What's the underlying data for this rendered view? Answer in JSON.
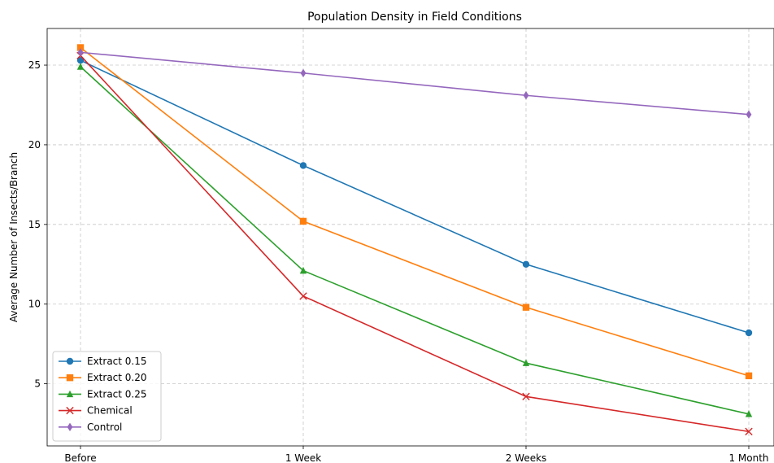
{
  "chart_data": {
    "type": "line",
    "title": "Population Density in Field Conditions",
    "xlabel": "",
    "ylabel": "Average Number of Insects/Branch",
    "categories": [
      "Before",
      "1 Week",
      "2 Weeks",
      "1 Month"
    ],
    "ylim": [
      1.1,
      27.3
    ],
    "yticks": [
      5,
      10,
      15,
      20,
      25
    ],
    "grid": true,
    "legend_position": "lower-left",
    "series": [
      {
        "name": "Extract 0.15",
        "color": "#1f77b4",
        "marker": "circle",
        "values": [
          25.3,
          18.7,
          12.5,
          8.2
        ]
      },
      {
        "name": "Extract 0.20",
        "color": "#ff7f0e",
        "marker": "square",
        "values": [
          26.1,
          15.2,
          9.8,
          5.5
        ]
      },
      {
        "name": "Extract 0.25",
        "color": "#2ca02c",
        "marker": "triangle",
        "values": [
          24.9,
          12.1,
          6.3,
          3.1
        ]
      },
      {
        "name": "Chemical",
        "color": "#d62728",
        "marker": "x",
        "values": [
          25.6,
          10.5,
          4.2,
          2.0
        ]
      },
      {
        "name": "Control",
        "color": "#9467bd",
        "marker": "diamond",
        "values": [
          25.8,
          24.5,
          23.1,
          21.9
        ]
      }
    ]
  }
}
